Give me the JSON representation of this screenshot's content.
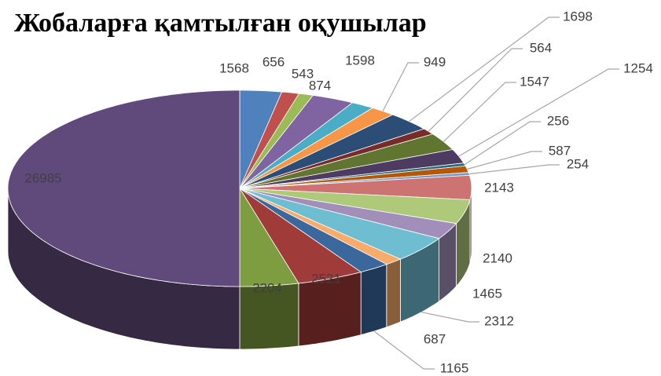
{
  "chart_data": {
    "type": "pie3d",
    "title": "Жобаларға қамтылған оқушылар",
    "values": [
      1568,
      656,
      543,
      1598,
      874,
      949,
      1698,
      564,
      1547,
      1254,
      256,
      587,
      254,
      2143,
      2140,
      1465,
      2312,
      687,
      1165,
      2521,
      2204,
      26985
    ],
    "colors": [
      "#4F81BD",
      "#C0504D",
      "#9BBB59",
      "#8064A2",
      "#4BACC6",
      "#F79646",
      "#2C4D75",
      "#772C2A",
      "#5F7530",
      "#4D3B62",
      "#276A7C",
      "#B65708",
      "#729ACA",
      "#CD7371",
      "#AFC97A",
      "#A18FB9",
      "#6FBDD1",
      "#F9AB6B",
      "#3A679C",
      "#9F3B38",
      "#7E9D40",
      "#604A7B"
    ]
  }
}
